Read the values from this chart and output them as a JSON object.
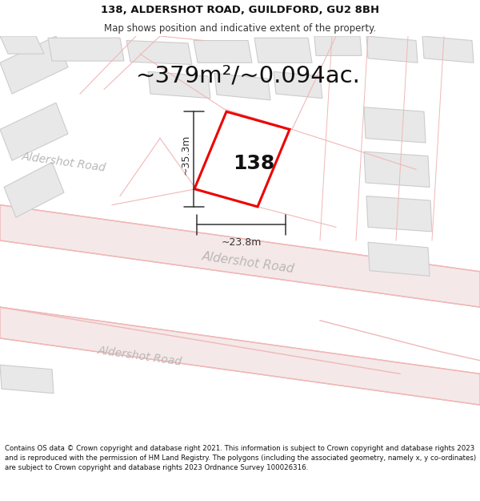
{
  "title_line1": "138, ALDERSHOT ROAD, GUILDFORD, GU2 8BH",
  "title_line2": "Map shows position and indicative extent of the property.",
  "area_text": "~379m²/~0.094ac.",
  "label_138": "138",
  "dim_vertical": "~35.3m",
  "dim_horizontal": "~23.8m",
  "road_label_c": "Aldershot Road",
  "road_label_l": "Aldershot Road",
  "road_label_b": "Aldershot Road",
  "footer_text": "Contains OS data © Crown copyright and database right 2021. This information is subject to Crown copyright and database rights 2023 and is reproduced with the permission of HM Land Registry. The polygons (including the associated geometry, namely x, y co-ordinates) are subject to Crown copyright and database rights 2023 Ordnance Survey 100026316.",
  "map_bg": "#ffffff",
  "plot_fill": "#ffffff",
  "plot_edge": "#ee0000",
  "road_line_color": "#f0b8b8",
  "road_fill_color": "#f5e8e8",
  "building_fill": "#e8e8e8",
  "building_edge": "#cccccc",
  "dim_color": "#333333",
  "road_text_color": "#b8b8b8",
  "title_fontsize": 9.5,
  "subtitle_fontsize": 8.5,
  "area_fontsize": 21,
  "label_fontsize": 18,
  "dim_fontsize": 9,
  "road_fontsize": 11,
  "footer_fontsize": 6.2,
  "title_color": "#111111",
  "subtitle_color": "#333333",
  "footer_color": "#111111"
}
